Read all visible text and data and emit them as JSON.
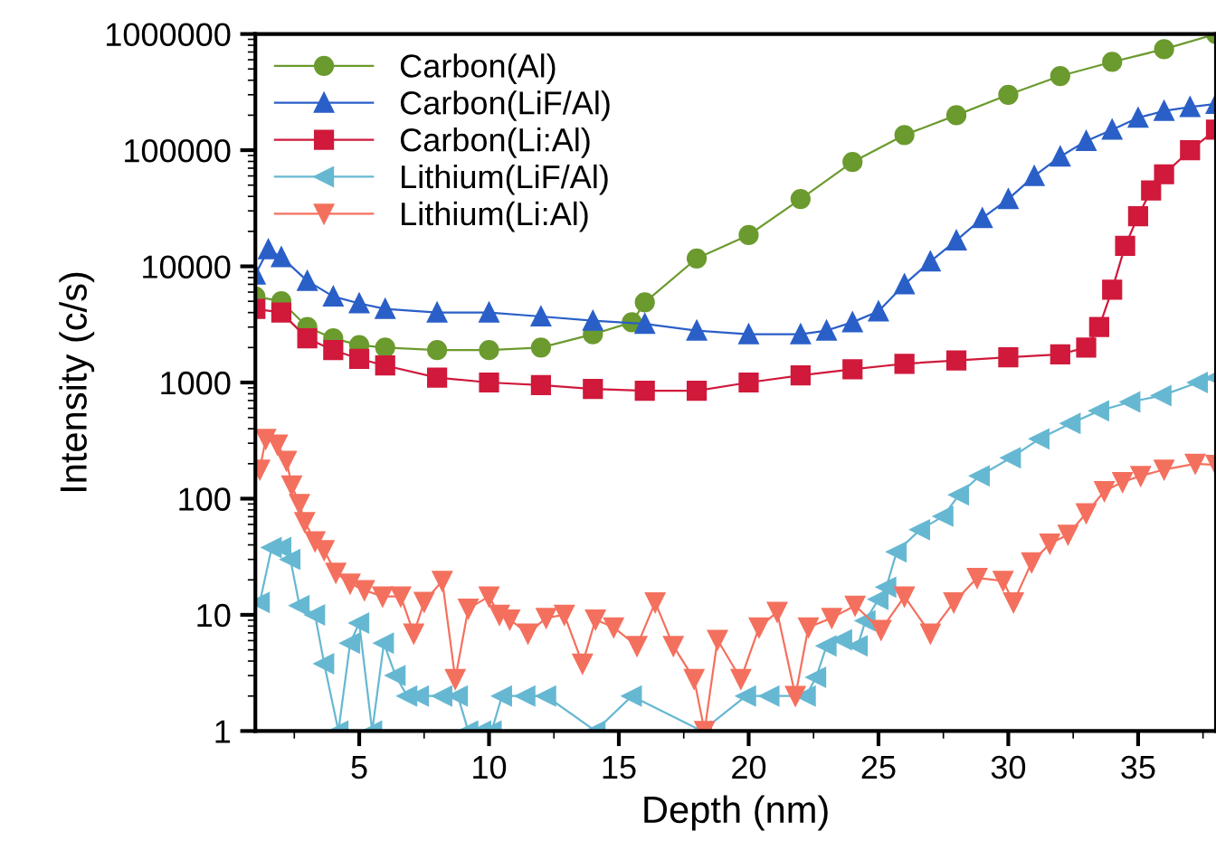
{
  "chart_data": {
    "type": "line",
    "xlabel": "Depth (nm)",
    "ylabel": "Intensity (c/s)",
    "log": "y",
    "xlim": [
      1,
      38
    ],
    "xticks": [
      5,
      10,
      15,
      20,
      25,
      30,
      35
    ],
    "ylim": [
      1,
      1000000
    ],
    "yticks": [
      1,
      10,
      100,
      1000,
      10000,
      100000,
      1000000
    ],
    "grid": false,
    "legend": "top left",
    "series": [
      {
        "name": "Carbon(Al)",
        "color": "#6b9a2e",
        "marker": "circle",
        "x": [
          1,
          2,
          3,
          4,
          5,
          6,
          8,
          10,
          12,
          14,
          15.5,
          16,
          18,
          20,
          22,
          24,
          26,
          28,
          30,
          32,
          34,
          36,
          38
        ],
        "values": [
          5500,
          5000,
          3000,
          2400,
          2100,
          2000,
          1900,
          1900,
          2000,
          2600,
          3300,
          4900,
          11700,
          18600,
          38000,
          79000,
          135000,
          200000,
          300000,
          435000,
          575000,
          740000,
          1000000
        ]
      },
      {
        "name": "Carbon(LiF/Al)",
        "color": "#2a5fc8",
        "marker": "triangle",
        "x": [
          1,
          1.5,
          2,
          3,
          4,
          5,
          6,
          8,
          10,
          12,
          14,
          16,
          18,
          20,
          22,
          23,
          24,
          25,
          26,
          27,
          28,
          29,
          30,
          31,
          32,
          33,
          34,
          35,
          36,
          37,
          38
        ],
        "values": [
          8500,
          14000,
          12000,
          7500,
          5500,
          4800,
          4300,
          4000,
          4000,
          3700,
          3400,
          3200,
          2800,
          2600,
          2600,
          2800,
          3300,
          4100,
          7000,
          11000,
          16700,
          26000,
          38000,
          60000,
          88000,
          120000,
          150000,
          190000,
          218000,
          235000,
          250000
        ]
      },
      {
        "name": "Carbon(Li:Al)",
        "color": "#d0193b",
        "marker": "square",
        "x": [
          1,
          2,
          3,
          4,
          5,
          6,
          8,
          10,
          12,
          14,
          16,
          18,
          20,
          22,
          24,
          26,
          28,
          30,
          32,
          33,
          33.5,
          34,
          34.5,
          35,
          35.5,
          36,
          37,
          38
        ],
        "values": [
          4300,
          4000,
          2400,
          1900,
          1600,
          1400,
          1100,
          1000,
          950,
          880,
          850,
          850,
          1000,
          1150,
          1300,
          1450,
          1550,
          1650,
          1750,
          2000,
          3000,
          6300,
          15000,
          27000,
          45000,
          62000,
          100000,
          150000
        ]
      },
      {
        "name": "Lithium(LiF/Al)",
        "color": "#66b8d2",
        "marker": "triangle-left",
        "x": [
          1.17,
          1.63,
          2.0,
          2.35,
          2.7,
          3.3,
          3.65,
          4.2,
          4.65,
          5.0,
          5.5,
          5.95,
          6.4,
          6.85,
          7.3,
          8.2,
          8.8,
          9.2,
          9.7,
          10.1,
          10.5,
          11.4,
          12.2,
          14.1,
          15.5,
          18.2,
          19.9,
          20.8,
          22.2,
          22.6,
          23.0,
          23.6,
          24.2,
          24.5,
          25.0,
          25.3,
          25.7,
          26.6,
          27.5,
          28.1,
          28.9,
          30.1,
          31.2,
          32.4,
          33.5,
          34.7,
          35.9,
          37.3,
          38
        ],
        "values": [
          12.8,
          38,
          38,
          30,
          12,
          10,
          3.8,
          1,
          5.7,
          8.5,
          1,
          5.7,
          3,
          2,
          2,
          2,
          2,
          1,
          1,
          1,
          2,
          2,
          2,
          1,
          2,
          1,
          2,
          2,
          2,
          2.9,
          5.4,
          6.1,
          5.4,
          8.9,
          13.6,
          17.3,
          34.8,
          54,
          70.6,
          108,
          157,
          225,
          327,
          445,
          570,
          680,
          770,
          1000,
          1100
        ]
      },
      {
        "name": "Lithium(Li:Al)",
        "color": "#f4705e",
        "marker": "triangle-down",
        "x": [
          1.17,
          1.4,
          1.85,
          2.2,
          2.4,
          2.7,
          2.9,
          3.3,
          3.65,
          4.1,
          4.65,
          5.2,
          5.9,
          6.6,
          7.1,
          7.5,
          8.2,
          8.7,
          9.2,
          10.0,
          10.4,
          10.8,
          11.5,
          12.2,
          12.9,
          13.6,
          14.1,
          14.8,
          15.7,
          16.4,
          17.1,
          17.9,
          18.3,
          18.8,
          19.7,
          20.4,
          21.1,
          21.8,
          22.3,
          23.2,
          24.1,
          25.1,
          26.0,
          27.0,
          27.9,
          28.8,
          29.8,
          30.2,
          30.9,
          31.6,
          32.3,
          33.0,
          33.7,
          34.4,
          35.1,
          36.0,
          37.2,
          38
        ],
        "values": [
          178,
          327,
          292,
          212,
          130,
          90,
          63,
          43,
          36,
          23,
          18.6,
          16.3,
          14.4,
          14.4,
          6.9,
          12.9,
          19.6,
          2.8,
          11.3,
          14.4,
          10,
          9.1,
          6.9,
          9.4,
          10,
          3.8,
          9.1,
          7.8,
          5.4,
          12.8,
          5.4,
          2.8,
          1,
          6.1,
          2.8,
          7.8,
          10.6,
          2,
          7.8,
          9.4,
          12,
          7.4,
          14.4,
          6.9,
          12.8,
          20.8,
          19.6,
          12.8,
          28.3,
          41,
          49,
          75,
          116,
          139,
          157,
          178,
          200,
          195
        ]
      }
    ]
  }
}
